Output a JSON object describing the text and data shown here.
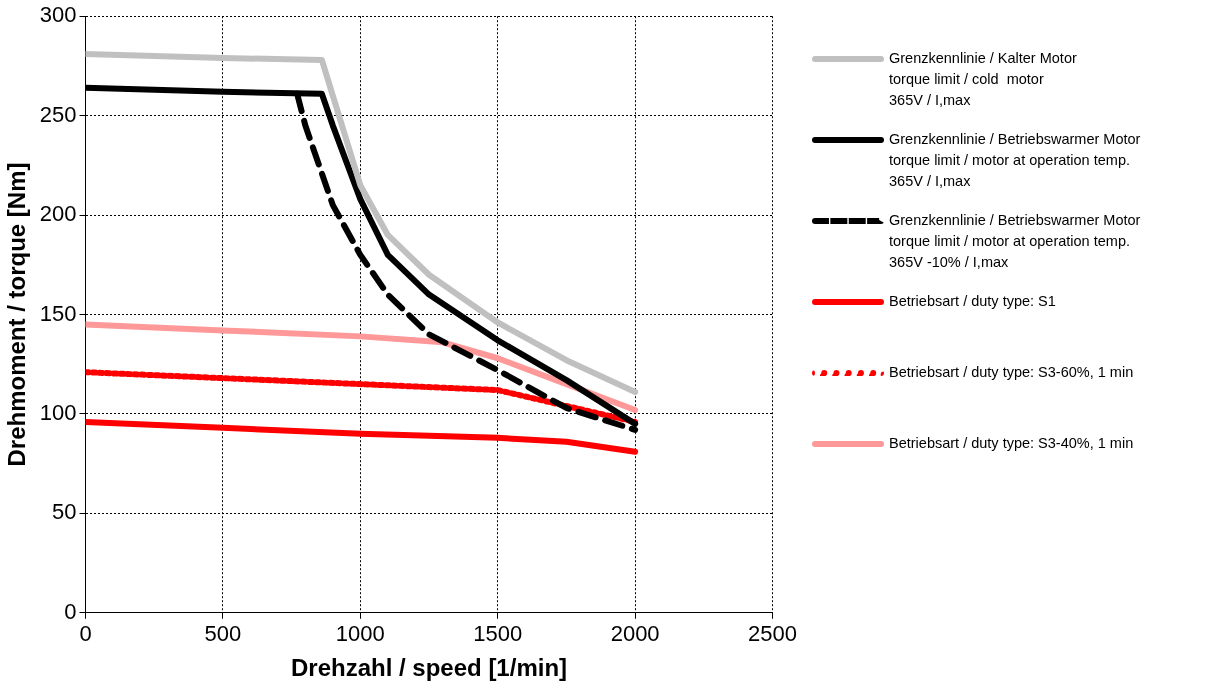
{
  "chart_data": {
    "type": "line",
    "xlabel": "Drehzahl / speed [1/min]",
    "ylabel": "Drehmoment / torque [Nm]",
    "xlim": [
      0,
      2500
    ],
    "xticks": [
      0,
      500,
      1000,
      1500,
      2000,
      2500
    ],
    "ylim": [
      0,
      300
    ],
    "yticks": [
      0,
      50,
      100,
      150,
      200,
      250,
      300
    ],
    "grid": true,
    "legend": "right",
    "marker": "none",
    "series": [
      {
        "name": "Grenzkennlinie / Kalter Motor\ntorque limit / cold  motor\n365V / I,max",
        "color": "#c0c0c0",
        "x": [
          0,
          500,
          860,
          900,
          1000,
          1100,
          1250,
          1500,
          1750,
          2000
        ],
        "values": [
          281,
          279,
          278,
          260,
          215,
          190,
          170,
          146,
          127,
          111
        ]
      },
      {
        "name": "Grenzkennlinie / Betriebswarmer Motor\ntorque limit / motor at operation temp.\n365V / I,max",
        "color": "#000000",
        "x": [
          0,
          500,
          860,
          900,
          1000,
          1100,
          1250,
          1500,
          1750,
          2000
        ],
        "values": [
          264,
          262,
          261,
          245,
          208,
          180,
          160,
          137,
          117,
          95
        ]
      },
      {
        "name": "Grenzkennlinie / Betriebswarmer Motor\ntorque limit / motor at operation temp.\n365V -10% / I,max",
        "color": "#000000",
        "line_style": "dashed",
        "x": [
          770,
          800,
          900,
          1000,
          1100,
          1250,
          1500,
          1750,
          2000
        ],
        "values": [
          261,
          245,
          205,
          180,
          160,
          140,
          122,
          103,
          92
        ]
      },
      {
        "name": "Betriebsart / duty type: S1",
        "color": "#ff0000",
        "x": [
          0,
          500,
          1000,
          1500,
          1750,
          2000
        ],
        "values": [
          96,
          93,
          90,
          88,
          86,
          81
        ]
      },
      {
        "name": "Betriebsart / duty type: S3-60%, 1 min",
        "color": "#ff0000",
        "line_style": "dotted",
        "x": [
          0,
          500,
          1000,
          1500,
          1750,
          2000
        ],
        "values": [
          121,
          118,
          115,
          112,
          104,
          96
        ]
      },
      {
        "name": "Betriebsart / duty type: S3-40%, 1 min",
        "color": "#ff9999",
        "x": [
          0,
          500,
          1000,
          1300,
          1500,
          1750,
          2000
        ],
        "values": [
          145,
          142,
          139,
          136,
          128,
          115,
          102
        ]
      }
    ]
  }
}
